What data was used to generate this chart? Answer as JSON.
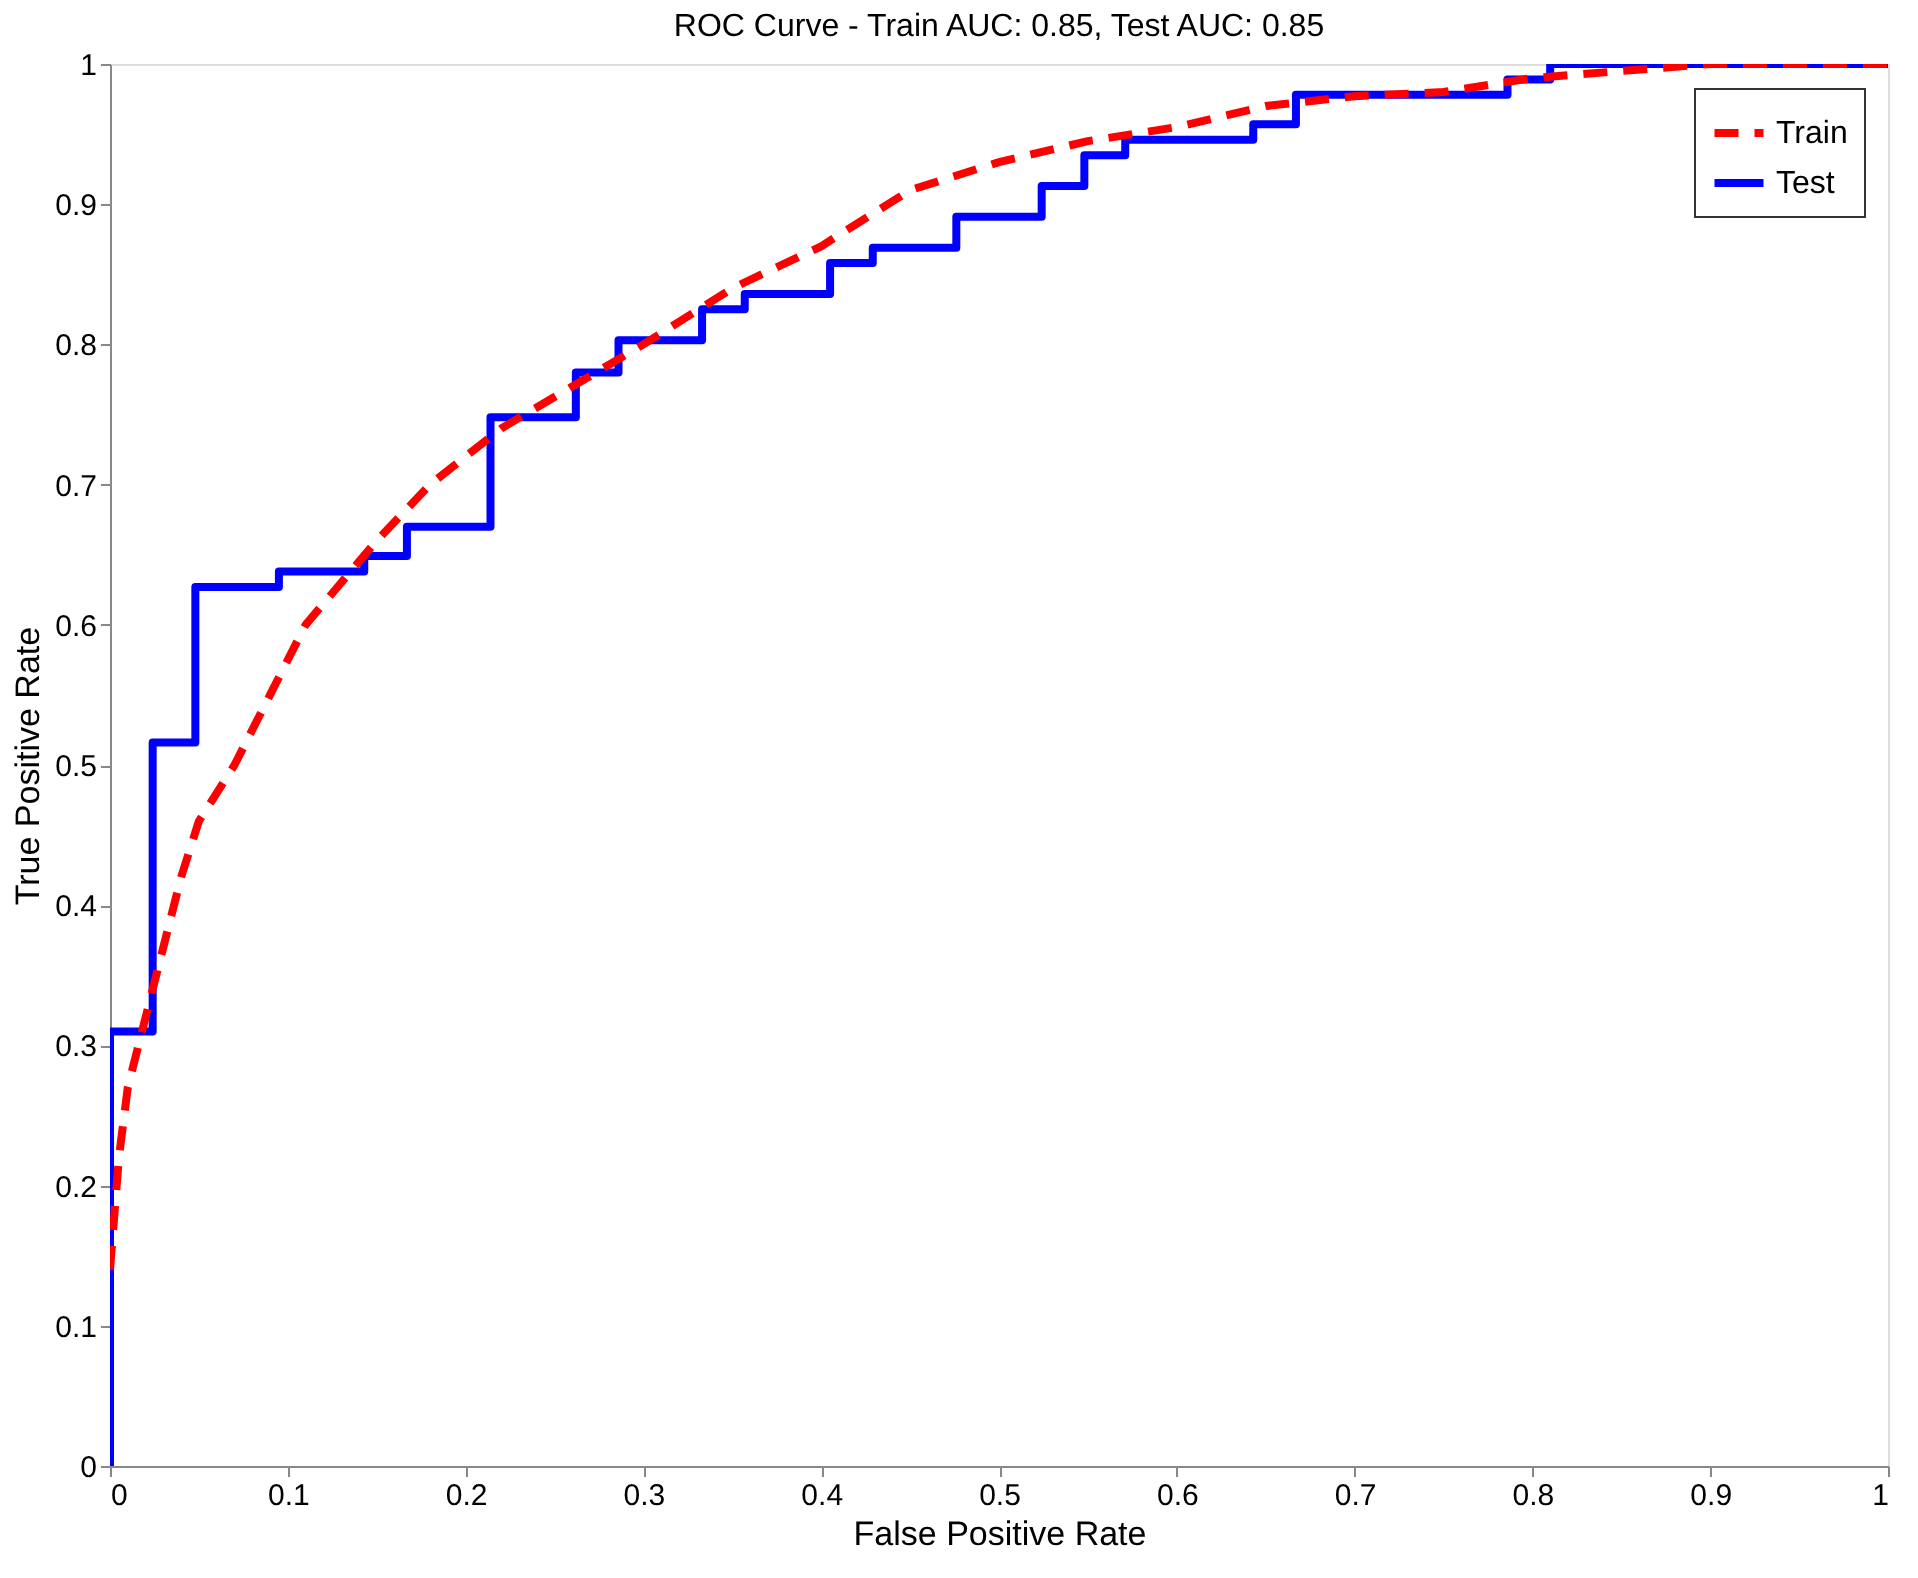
{
  "chart_data": {
    "type": "line",
    "title": "ROC Curve - Train AUC: 0.85, Test AUC: 0.85",
    "xlabel": "False Positive Rate",
    "ylabel": "True Positive Rate",
    "xlim": [
      0,
      1
    ],
    "ylim": [
      0,
      1
    ],
    "xticks": [
      0,
      0.1,
      0.2,
      0.3,
      0.4,
      0.5,
      0.6,
      0.7,
      0.8,
      0.9,
      1
    ],
    "yticks": [
      0,
      0.1,
      0.2,
      0.3,
      0.4,
      0.5,
      0.6,
      0.7,
      0.8,
      0.9,
      1
    ],
    "grid": false,
    "legend": "top right",
    "series": [
      {
        "name": "Train",
        "color": "#ff0000",
        "type": "line",
        "line_style": "dashed",
        "x": [
          0,
          0.005,
          0.01,
          0.02,
          0.03,
          0.04,
          0.05,
          0.07,
          0.09,
          0.11,
          0.13,
          0.15,
          0.18,
          0.22,
          0.26,
          0.3,
          0.35,
          0.4,
          0.45,
          0.5,
          0.55,
          0.6,
          0.65,
          0.7,
          0.75,
          0.8,
          0.85,
          0.9,
          1.0
        ],
        "values": [
          0.14,
          0.22,
          0.27,
          0.32,
          0.37,
          0.42,
          0.46,
          0.5,
          0.55,
          0.6,
          0.63,
          0.66,
          0.7,
          0.74,
          0.77,
          0.8,
          0.84,
          0.87,
          0.91,
          0.93,
          0.945,
          0.955,
          0.97,
          0.977,
          0.98,
          0.99,
          0.995,
          1.0,
          1.0
        ]
      },
      {
        "name": "Test",
        "color": "#0000ff",
        "type": "step",
        "line_style": "solid",
        "x": [
          0,
          0,
          0.024,
          0.048,
          0.095,
          0.143,
          0.167,
          0.214,
          0.262,
          0.286,
          0.333,
          0.357,
          0.405,
          0.429,
          0.476,
          0.524,
          0.548,
          0.571,
          0.643,
          0.667,
          0.786,
          0.81,
          1.0
        ],
        "values": [
          0,
          0.31,
          0.516,
          0.627,
          0.638,
          0.649,
          0.67,
          0.748,
          0.78,
          0.803,
          0.825,
          0.836,
          0.858,
          0.869,
          0.891,
          0.913,
          0.935,
          0.946,
          0.957,
          0.978,
          0.989,
          1.0,
          1.0
        ]
      }
    ]
  }
}
